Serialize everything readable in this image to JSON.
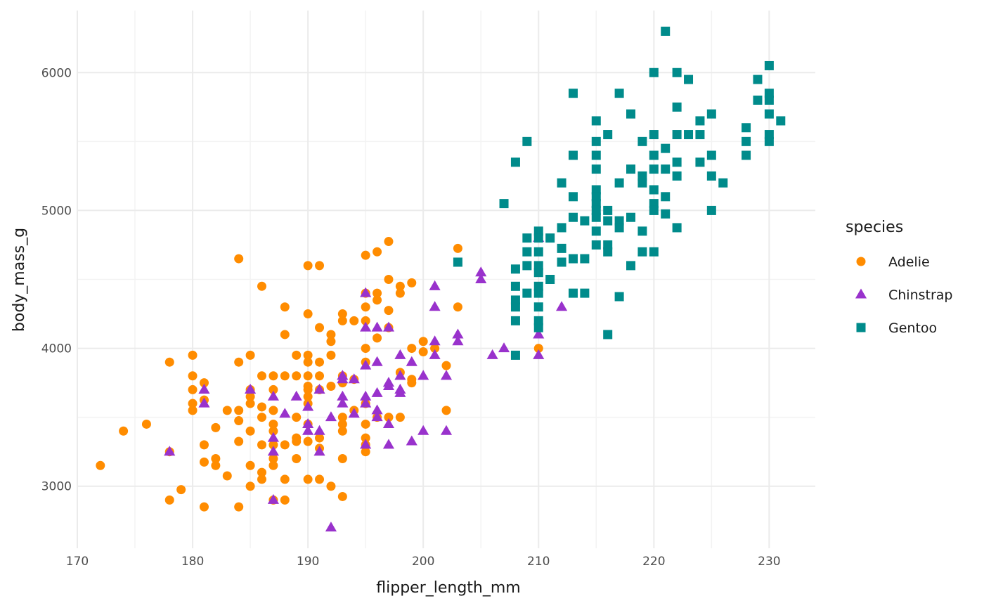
{
  "chart_data": {
    "type": "scatter",
    "title": "",
    "xlabel": "flipper_length_mm",
    "ylabel": "body_mass_g",
    "xlim": [
      170,
      234
    ],
    "ylim": [
      2550,
      6450
    ],
    "xticks": [
      170,
      180,
      190,
      200,
      210,
      220,
      230
    ],
    "yticks": [
      3000,
      4000,
      5000,
      6000
    ],
    "grid": true,
    "legend": {
      "title": "species",
      "position": "right"
    },
    "series": [
      {
        "name": "Adelie",
        "color": "#FF8C00",
        "shape": "circle",
        "points": [
          [
            172,
            3150
          ],
          [
            174,
            3400
          ],
          [
            176,
            3450
          ],
          [
            178,
            3900
          ],
          [
            178,
            3250
          ],
          [
            178,
            2900
          ],
          [
            179,
            2975
          ],
          [
            180,
            3950
          ],
          [
            180,
            3800
          ],
          [
            180,
            3700
          ],
          [
            180,
            3600
          ],
          [
            180,
            3550
          ],
          [
            181,
            3750
          ],
          [
            181,
            3625
          ],
          [
            181,
            3300
          ],
          [
            181,
            3175
          ],
          [
            181,
            2850
          ],
          [
            182,
            3425
          ],
          [
            182,
            3200
          ],
          [
            182,
            3150
          ],
          [
            183,
            3550
          ],
          [
            183,
            3075
          ],
          [
            184,
            4650
          ],
          [
            184,
            3900
          ],
          [
            184,
            3550
          ],
          [
            184,
            3475
          ],
          [
            184,
            3325
          ],
          [
            184,
            2850
          ],
          [
            185,
            3950
          ],
          [
            185,
            3700
          ],
          [
            185,
            3650
          ],
          [
            185,
            3600
          ],
          [
            185,
            3400
          ],
          [
            185,
            3150
          ],
          [
            185,
            3000
          ],
          [
            186,
            4450
          ],
          [
            186,
            3800
          ],
          [
            186,
            3575
          ],
          [
            186,
            3500
          ],
          [
            186,
            3300
          ],
          [
            186,
            3100
          ],
          [
            186,
            3050
          ],
          [
            187,
            3800
          ],
          [
            187,
            3700
          ],
          [
            187,
            3550
          ],
          [
            187,
            3450
          ],
          [
            187,
            3400
          ],
          [
            187,
            3300
          ],
          [
            187,
            3200
          ],
          [
            187,
            3150
          ],
          [
            187,
            2900
          ],
          [
            188,
            4300
          ],
          [
            188,
            4100
          ],
          [
            188,
            3800
          ],
          [
            188,
            3300
          ],
          [
            188,
            3050
          ],
          [
            188,
            2900
          ],
          [
            189,
            3950
          ],
          [
            189,
            3800
          ],
          [
            189,
            3500
          ],
          [
            189,
            3350
          ],
          [
            189,
            3325
          ],
          [
            189,
            3200
          ],
          [
            190,
            4600
          ],
          [
            190,
            4250
          ],
          [
            190,
            3950
          ],
          [
            190,
            3900
          ],
          [
            190,
            3800
          ],
          [
            190,
            3725
          ],
          [
            190,
            3700
          ],
          [
            190,
            3650
          ],
          [
            190,
            3600
          ],
          [
            190,
            3450
          ],
          [
            190,
            3325
          ],
          [
            190,
            3050
          ],
          [
            191,
            4600
          ],
          [
            191,
            4150
          ],
          [
            191,
            3900
          ],
          [
            191,
            3800
          ],
          [
            191,
            3700
          ],
          [
            191,
            3350
          ],
          [
            191,
            3275
          ],
          [
            191,
            3050
          ],
          [
            192,
            4100
          ],
          [
            192,
            4050
          ],
          [
            192,
            3950
          ],
          [
            192,
            3725
          ],
          [
            192,
            3000
          ],
          [
            193,
            4250
          ],
          [
            193,
            4200
          ],
          [
            193,
            3800
          ],
          [
            193,
            3750
          ],
          [
            193,
            3500
          ],
          [
            193,
            3450
          ],
          [
            193,
            3400
          ],
          [
            193,
            3200
          ],
          [
            193,
            2925
          ],
          [
            194,
            4200
          ],
          [
            194,
            3775
          ],
          [
            194,
            3550
          ],
          [
            195,
            4675
          ],
          [
            195,
            4400
          ],
          [
            195,
            4300
          ],
          [
            195,
            4200
          ],
          [
            195,
            4000
          ],
          [
            195,
            3900
          ],
          [
            195,
            3600
          ],
          [
            195,
            3450
          ],
          [
            195,
            3350
          ],
          [
            195,
            3300
          ],
          [
            195,
            3250
          ],
          [
            196,
            4700
          ],
          [
            196,
            4400
          ],
          [
            196,
            4350
          ],
          [
            196,
            4075
          ],
          [
            196,
            3500
          ],
          [
            197,
            4775
          ],
          [
            197,
            4500
          ],
          [
            197,
            4275
          ],
          [
            197,
            4150
          ],
          [
            197,
            3500
          ],
          [
            198,
            4450
          ],
          [
            198,
            4400
          ],
          [
            198,
            3825
          ],
          [
            198,
            3500
          ],
          [
            199,
            4475
          ],
          [
            199,
            4000
          ],
          [
            199,
            3775
          ],
          [
            199,
            3750
          ],
          [
            200,
            4050
          ],
          [
            200,
            3975
          ],
          [
            201,
            4000
          ],
          [
            202,
            3875
          ],
          [
            202,
            3550
          ],
          [
            203,
            4725
          ],
          [
            203,
            4300
          ],
          [
            210,
            4000
          ]
        ]
      },
      {
        "name": "Chinstrap",
        "color": "#9932CC",
        "shape": "triangle",
        "points": [
          [
            178,
            3250
          ],
          [
            181,
            3700
          ],
          [
            181,
            3600
          ],
          [
            185,
            3700
          ],
          [
            187,
            3650
          ],
          [
            187,
            3350
          ],
          [
            187,
            3250
          ],
          [
            187,
            2900
          ],
          [
            188,
            3525
          ],
          [
            189,
            3650
          ],
          [
            190,
            3575
          ],
          [
            190,
            3450
          ],
          [
            190,
            3400
          ],
          [
            191,
            3700
          ],
          [
            191,
            3400
          ],
          [
            191,
            3250
          ],
          [
            192,
            3500
          ],
          [
            192,
            2700
          ],
          [
            193,
            3800
          ],
          [
            193,
            3775
          ],
          [
            193,
            3650
          ],
          [
            193,
            3600
          ],
          [
            194,
            3775
          ],
          [
            194,
            3525
          ],
          [
            195,
            4400
          ],
          [
            195,
            4150
          ],
          [
            195,
            3875
          ],
          [
            195,
            3650
          ],
          [
            195,
            3600
          ],
          [
            195,
            3300
          ],
          [
            196,
            4150
          ],
          [
            196,
            3900
          ],
          [
            196,
            3675
          ],
          [
            196,
            3550
          ],
          [
            196,
            3500
          ],
          [
            197,
            4150
          ],
          [
            197,
            3750
          ],
          [
            197,
            3725
          ],
          [
            197,
            3450
          ],
          [
            197,
            3300
          ],
          [
            198,
            3950
          ],
          [
            198,
            3800
          ],
          [
            198,
            3700
          ],
          [
            198,
            3675
          ],
          [
            199,
            3900
          ],
          [
            199,
            3325
          ],
          [
            200,
            3800
          ],
          [
            200,
            3400
          ],
          [
            201,
            4450
          ],
          [
            201,
            4300
          ],
          [
            201,
            4050
          ],
          [
            201,
            3950
          ],
          [
            202,
            3800
          ],
          [
            202,
            3400
          ],
          [
            203,
            4100
          ],
          [
            203,
            4050
          ],
          [
            205,
            4550
          ],
          [
            205,
            4500
          ],
          [
            206,
            3950
          ],
          [
            207,
            4000
          ],
          [
            210,
            4800
          ],
          [
            210,
            4100
          ],
          [
            210,
            3950
          ],
          [
            212,
            4300
          ]
        ]
      },
      {
        "name": "Gentoo",
        "color": "#008B8B",
        "shape": "square",
        "points": [
          [
            203,
            4625
          ],
          [
            207,
            5050
          ],
          [
            208,
            5350
          ],
          [
            208,
            4575
          ],
          [
            208,
            4450
          ],
          [
            208,
            4350
          ],
          [
            208,
            4300
          ],
          [
            208,
            4200
          ],
          [
            208,
            3950
          ],
          [
            209,
            5500
          ],
          [
            209,
            4800
          ],
          [
            209,
            4700
          ],
          [
            209,
            4600
          ],
          [
            209,
            4400
          ],
          [
            210,
            4850
          ],
          [
            210,
            4800
          ],
          [
            210,
            4700
          ],
          [
            210,
            4600
          ],
          [
            210,
            4550
          ],
          [
            210,
            4450
          ],
          [
            210,
            4400
          ],
          [
            210,
            4300
          ],
          [
            210,
            4200
          ],
          [
            210,
            4150
          ],
          [
            211,
            4800
          ],
          [
            211,
            4500
          ],
          [
            212,
            5200
          ],
          [
            212,
            4875
          ],
          [
            212,
            4725
          ],
          [
            212,
            4625
          ],
          [
            213,
            5850
          ],
          [
            213,
            5400
          ],
          [
            213,
            5100
          ],
          [
            213,
            4950
          ],
          [
            213,
            4650
          ],
          [
            213,
            4400
          ],
          [
            214,
            4925
          ],
          [
            214,
            4650
          ],
          [
            214,
            4400
          ],
          [
            215,
            5650
          ],
          [
            215,
            5500
          ],
          [
            215,
            5400
          ],
          [
            215,
            5300
          ],
          [
            215,
            5150
          ],
          [
            215,
            5100
          ],
          [
            215,
            5050
          ],
          [
            215,
            5000
          ],
          [
            215,
            4950
          ],
          [
            215,
            4850
          ],
          [
            215,
            4750
          ],
          [
            216,
            5550
          ],
          [
            216,
            5000
          ],
          [
            216,
            4925
          ],
          [
            216,
            4750
          ],
          [
            216,
            4700
          ],
          [
            216,
            4100
          ],
          [
            217,
            5850
          ],
          [
            217,
            5200
          ],
          [
            217,
            4925
          ],
          [
            217,
            4875
          ],
          [
            217,
            4375
          ],
          [
            218,
            5700
          ],
          [
            218,
            5300
          ],
          [
            218,
            4950
          ],
          [
            218,
            4600
          ],
          [
            219,
            5500
          ],
          [
            219,
            5250
          ],
          [
            219,
            5200
          ],
          [
            219,
            4850
          ],
          [
            219,
            4700
          ],
          [
            220,
            6000
          ],
          [
            220,
            5550
          ],
          [
            220,
            5400
          ],
          [
            220,
            5300
          ],
          [
            220,
            5150
          ],
          [
            220,
            5050
          ],
          [
            220,
            5000
          ],
          [
            220,
            4700
          ],
          [
            221,
            6300
          ],
          [
            221,
            5450
          ],
          [
            221,
            5300
          ],
          [
            221,
            5100
          ],
          [
            221,
            4975
          ],
          [
            222,
            6000
          ],
          [
            222,
            5750
          ],
          [
            222,
            5550
          ],
          [
            222,
            5350
          ],
          [
            222,
            5250
          ],
          [
            222,
            4875
          ],
          [
            223,
            5950
          ],
          [
            223,
            5550
          ],
          [
            224,
            5650
          ],
          [
            224,
            5550
          ],
          [
            224,
            5350
          ],
          [
            225,
            5700
          ],
          [
            225,
            5400
          ],
          [
            225,
            5250
          ],
          [
            225,
            5000
          ],
          [
            226,
            5200
          ],
          [
            228,
            5600
          ],
          [
            228,
            5500
          ],
          [
            228,
            5400
          ],
          [
            229,
            5950
          ],
          [
            229,
            5800
          ],
          [
            230,
            6050
          ],
          [
            230,
            5850
          ],
          [
            230,
            5800
          ],
          [
            230,
            5700
          ],
          [
            230,
            5550
          ],
          [
            230,
            5500
          ],
          [
            231,
            5650
          ]
        ]
      }
    ]
  }
}
